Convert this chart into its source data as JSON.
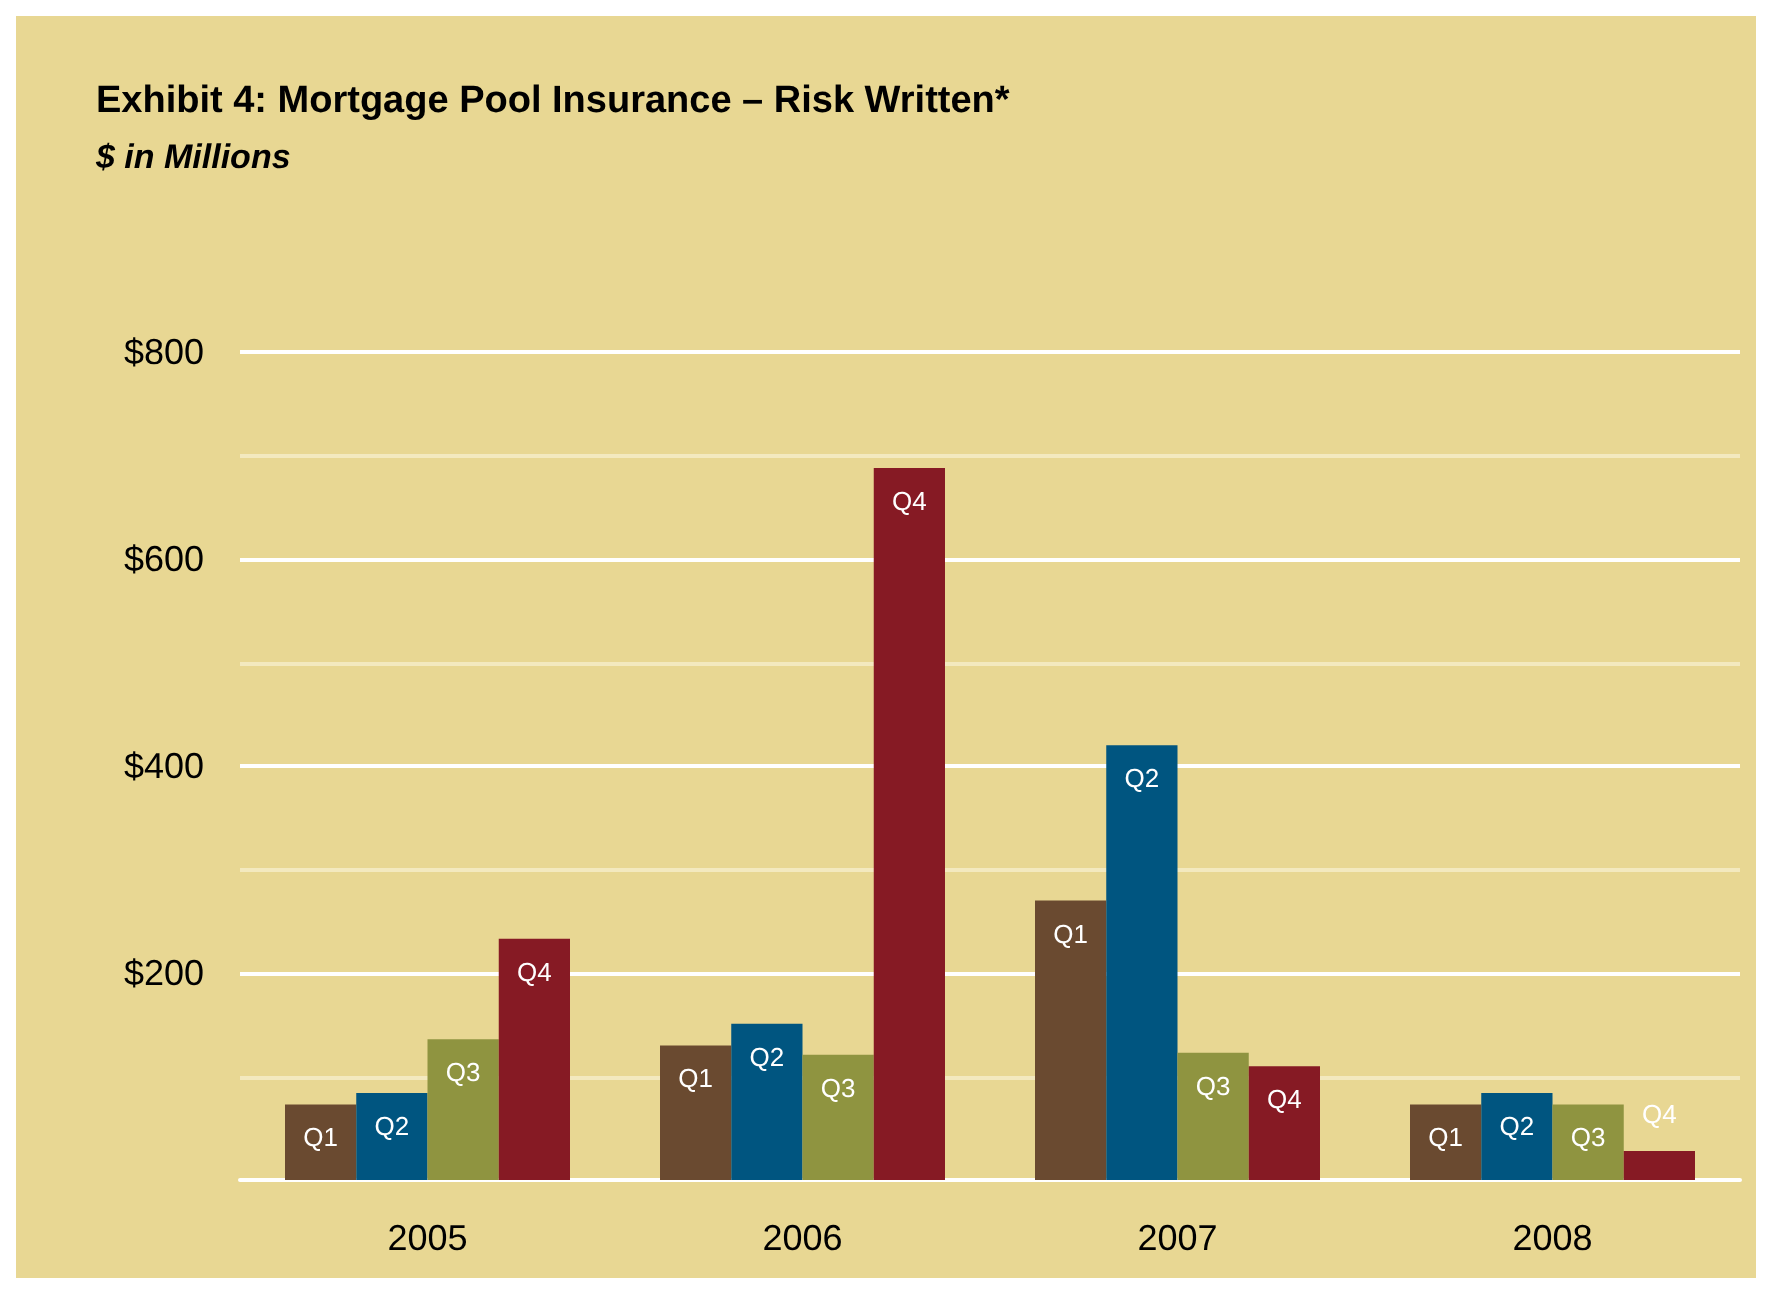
{
  "chart_data": {
    "type": "bar",
    "title": "Exhibit 4: Mortgage Pool Insurance – Risk Written*",
    "subtitle": "$ in Millions",
    "categories": [
      "2005",
      "2006",
      "2007",
      "2008"
    ],
    "series": [
      {
        "name": "Q1",
        "color": "#6a4a30",
        "values": [
          73,
          130,
          270,
          73
        ]
      },
      {
        "name": "Q2",
        "color": "#005580",
        "values": [
          84,
          151,
          420,
          84
        ]
      },
      {
        "name": "Q3",
        "color": "#8f9440",
        "values": [
          136,
          121,
          123,
          73
        ]
      },
      {
        "name": "Q4",
        "color": "#861a24",
        "values": [
          233,
          688,
          110,
          28
        ]
      }
    ],
    "ylim": [
      0,
      800
    ],
    "yticks": [
      {
        "value": 0,
        "label": null
      },
      {
        "value": 100,
        "label": null
      },
      {
        "value": 200,
        "label": "$200"
      },
      {
        "value": 300,
        "label": null
      },
      {
        "value": 400,
        "label": "$400"
      },
      {
        "value": 500,
        "label": null
      },
      {
        "value": 600,
        "label": "$600"
      },
      {
        "value": 700,
        "label": null
      },
      {
        "value": 800,
        "label": "$800"
      }
    ],
    "grid": true,
    "legend": false
  }
}
